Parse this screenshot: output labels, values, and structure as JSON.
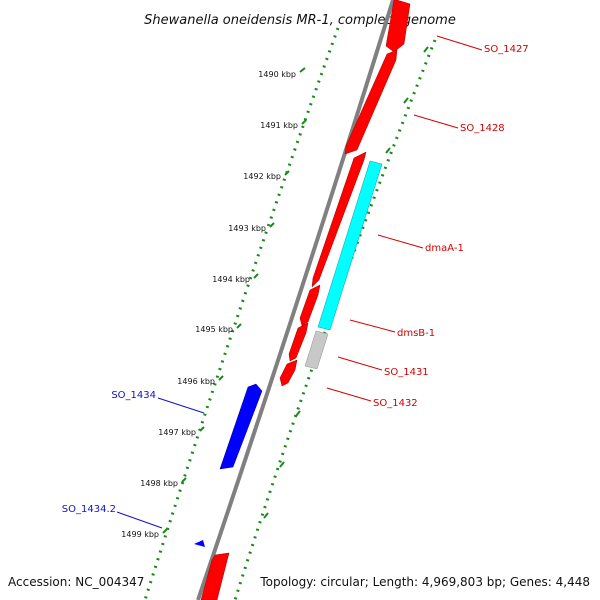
{
  "title": "Shewanella oneidensis MR-1, complete genome",
  "footer": {
    "accession": "Accession: NC_004347",
    "summary": "Topology: circular; Length: 4,969,803 bp; Genes: 4,448"
  },
  "colors": {
    "forward_gene": "#ff0000",
    "reverse_gene": "#0000ff",
    "cds_cyan": "#00ffff",
    "cds_grey": "#c8c8c8",
    "backbone": "#808080",
    "ticks": "#1a8a1a",
    "forward_label": "#d40000",
    "reverse_label": "#1111cc"
  },
  "ruler": [
    "1490 kbp",
    "1491 kbp",
    "1492 kbp",
    "1493 kbp",
    "1494 kbp",
    "1495 kbp",
    "1496 kbp",
    "1497 kbp",
    "1498 kbp",
    "1499 kbp"
  ],
  "gene_labels": [
    {
      "id": "so1427",
      "text": "SO_1427",
      "strand": "forward"
    },
    {
      "id": "so1428",
      "text": "SO_1428",
      "strand": "forward"
    },
    {
      "id": "dmaa1",
      "text": "dmaA-1",
      "strand": "forward"
    },
    {
      "id": "dmsb1",
      "text": "dmsB-1",
      "strand": "forward"
    },
    {
      "id": "so1431",
      "text": "SO_1431",
      "strand": "forward"
    },
    {
      "id": "so1432",
      "text": "SO_1432",
      "strand": "forward"
    },
    {
      "id": "so1434",
      "text": "SO_1434",
      "strand": "reverse"
    },
    {
      "id": "so14342",
      "text": "SO_1434.2",
      "strand": "reverse"
    }
  ]
}
